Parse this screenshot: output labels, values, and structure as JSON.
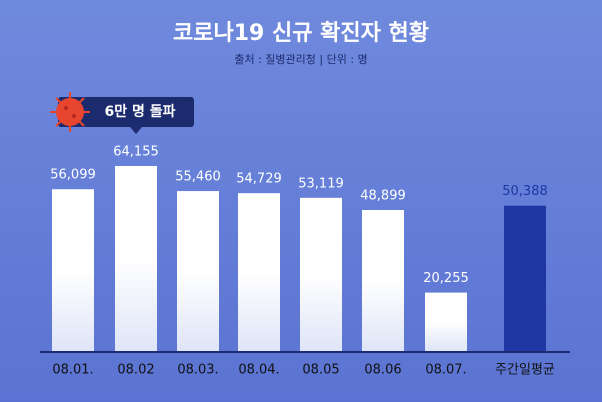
{
  "chart_data": {
    "type": "bar",
    "title": "코로나19 신규 확진자 현황",
    "subtitle": "출처 : 질병관리청 | 단위 : 명",
    "annotation": "6만 명 돌파",
    "categories": [
      "08.01.",
      "08.02",
      "08.03.",
      "08.04.",
      "08.05",
      "08.06",
      "08.07.",
      "주간일평균"
    ],
    "values": [
      56099,
      64155,
      55460,
      54729,
      53119,
      48899,
      20255,
      50388
    ],
    "value_labels": [
      "56,099",
      "64,155",
      "55,460",
      "54,729",
      "53,119",
      "48,899",
      "20,255",
      "50,388"
    ],
    "colors": [
      "#ffffff",
      "#ffffff",
      "#ffffff",
      "#ffffff",
      "#ffffff",
      "#ffffff",
      "#ffffff",
      "#1f37a3"
    ]
  }
}
